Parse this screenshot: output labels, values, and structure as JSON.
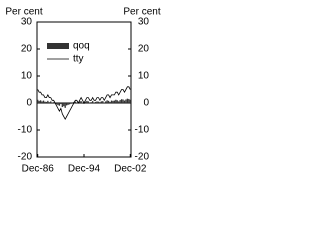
{
  "chart_data": {
    "type": "bar-line",
    "y_label": "Per cent",
    "y2_label": "Per cent",
    "categories": [
      "Dec-86",
      null,
      null,
      null,
      null,
      null,
      null,
      null,
      null,
      null,
      null,
      null,
      null,
      null,
      null,
      null,
      null,
      null,
      null,
      null,
      null,
      null,
      null,
      null,
      null,
      null,
      null,
      null,
      null,
      null,
      null,
      null,
      "Dec-94",
      null,
      null,
      null,
      null,
      null,
      null,
      null,
      null,
      null,
      null,
      null,
      null,
      null,
      null,
      null,
      null,
      null,
      null,
      null,
      null,
      null,
      null,
      null,
      null,
      null,
      null,
      null,
      null,
      null,
      null,
      null,
      "Dec-02"
    ],
    "series": [
      {
        "name": "qoq",
        "kind": "bar",
        "color": "#333333",
        "values": [
          1.2,
          0.8,
          1,
          0.6,
          0.9,
          0.5,
          0.4,
          0.8,
          0.3,
          0.6,
          0.2,
          0.3,
          -0.2,
          -0.5,
          -0.8,
          -1,
          -0.4,
          -1.5,
          -1.2,
          -1.8,
          -0.9,
          -0.7,
          -0.5,
          -0.3,
          0,
          0.4,
          0.5,
          0.2,
          -0.2,
          0.6,
          0.7,
          0.2,
          -0.3,
          0.5,
          0.8,
          0.6,
          0.1,
          0.3,
          0.7,
          0.2,
          0.4,
          0.6,
          0.5,
          0.3,
          0.6,
          0.7,
          0.2,
          0.6,
          1,
          0.8,
          0.4,
          0.9,
          0.8,
          0.9,
          1.2,
          1,
          0.6,
          1.1,
          1.4,
          1.3,
          0.9,
          1.3,
          1.6,
          1.5,
          1.2
        ]
      },
      {
        "name": "tty",
        "kind": "line",
        "color": "#000000",
        "values": [
          5,
          4,
          4,
          3,
          3,
          2,
          2,
          3,
          2,
          2,
          1,
          1,
          0,
          -1,
          -2,
          -3,
          -2,
          -4,
          -5,
          -6,
          -5,
          -4,
          -3,
          -2,
          -1,
          0,
          1,
          1,
          0,
          1,
          2,
          1,
          0,
          1,
          2,
          2,
          1,
          1,
          2,
          1,
          1,
          2,
          2,
          1,
          2,
          2,
          1,
          2,
          3,
          3,
          2,
          3,
          3,
          3,
          4,
          4,
          3,
          4,
          5,
          5,
          4,
          5,
          6,
          6,
          5
        ]
      }
    ],
    "ylim": [
      -20,
      30
    ],
    "yticks": [
      -20,
      -10,
      0,
      10,
      20,
      30
    ],
    "y2lim": [
      -20,
      30
    ],
    "y2ticks": [
      -20,
      -10,
      0,
      10,
      20,
      30
    ],
    "legend": "upper left"
  }
}
